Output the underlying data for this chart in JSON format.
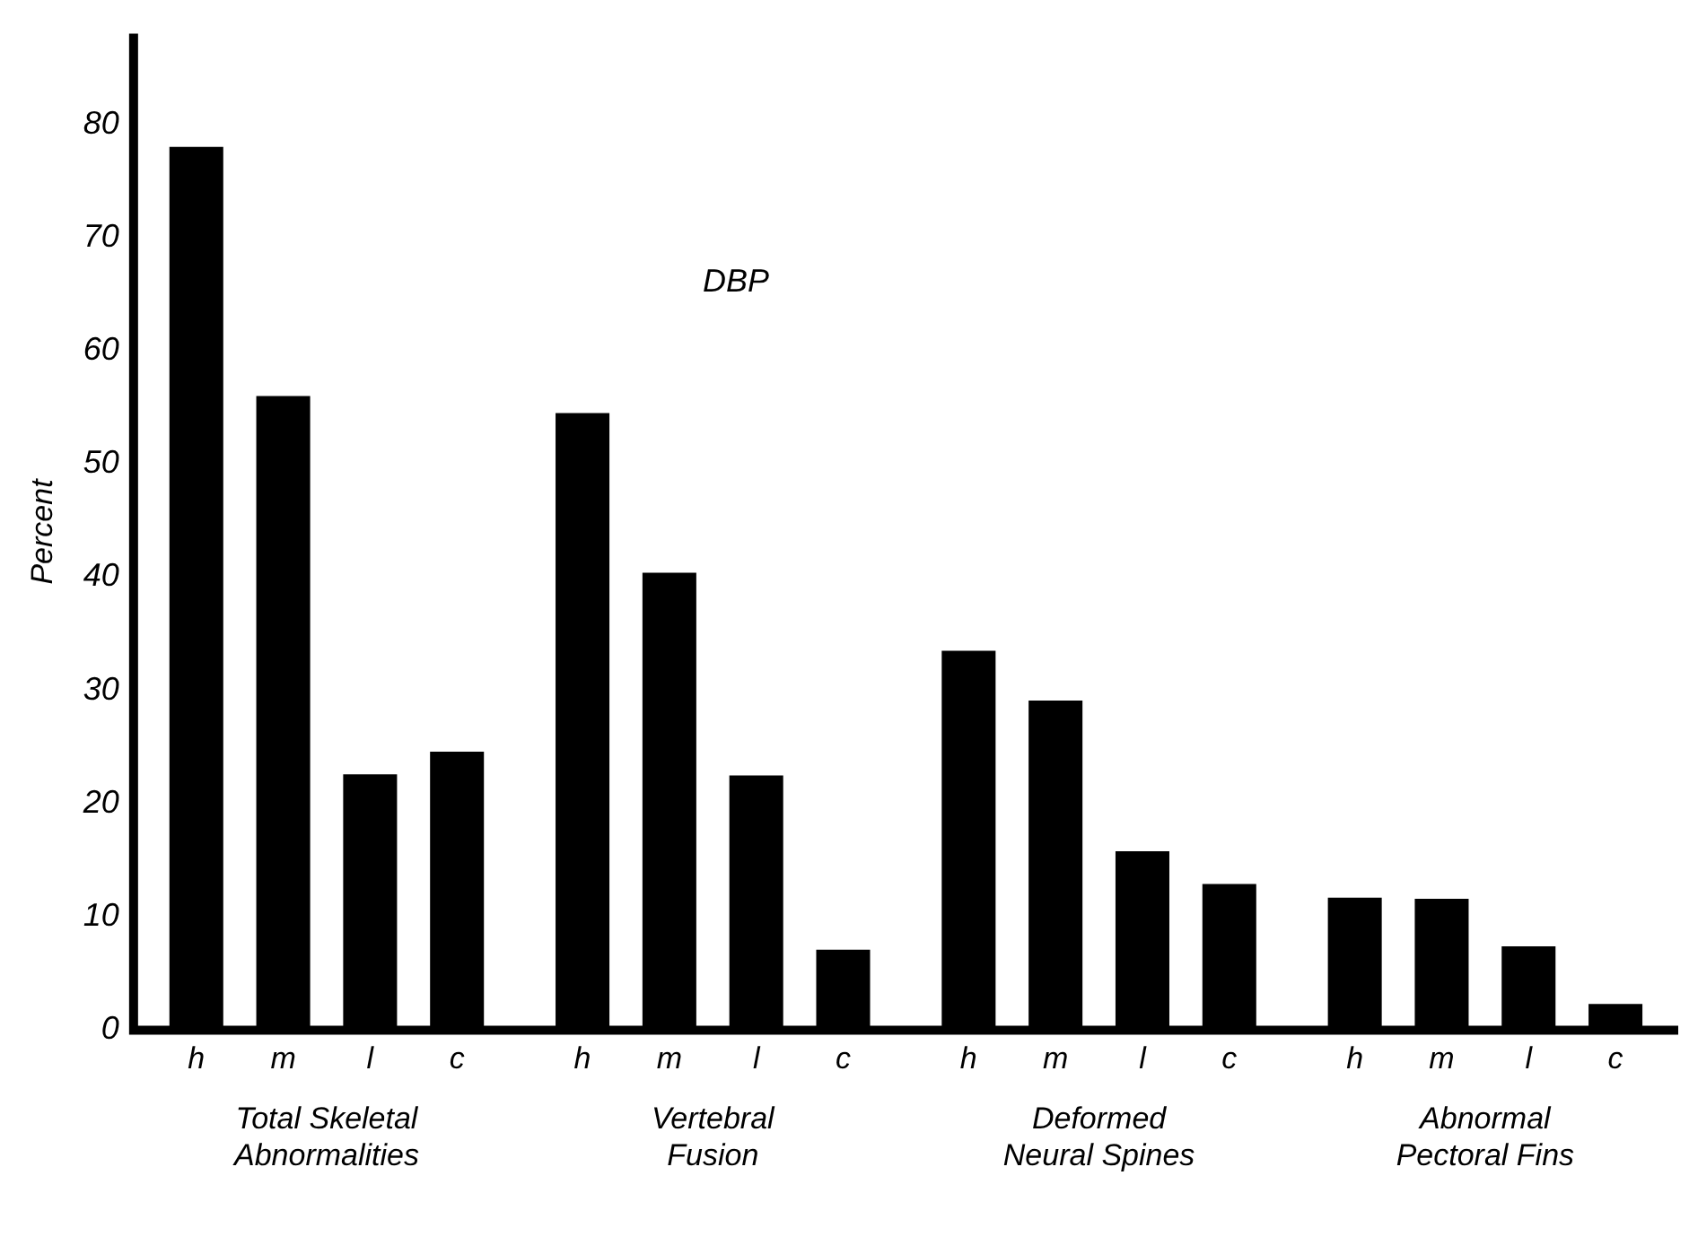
{
  "chart_data": {
    "type": "bar",
    "title": "DBP",
    "ylabel": "Percent",
    "categories": [
      "Total Skeletal Abnormalities",
      "Vertebral Fusion",
      "Deformed Neural Spines",
      "Abnormal Pectoral Fins"
    ],
    "series": [
      {
        "name": "h",
        "color": "#000000",
        "values": [
          78,
          54.5,
          33.5,
          11.7
        ]
      },
      {
        "name": "m",
        "color": "#000000",
        "values": [
          56,
          40.4,
          29.1,
          11.6
        ]
      },
      {
        "name": "l",
        "color": "#000000",
        "values": [
          22.6,
          22.5,
          15.8,
          7.4
        ]
      },
      {
        "name": "c",
        "color": "#000000",
        "values": [
          24.6,
          7.1,
          12.9,
          2.3
        ]
      }
    ],
    "ylim": [
      0,
      88
    ],
    "yticks": [
      0,
      10,
      20,
      30,
      40,
      50,
      60,
      70,
      80
    ],
    "grid": false,
    "legend": false
  }
}
